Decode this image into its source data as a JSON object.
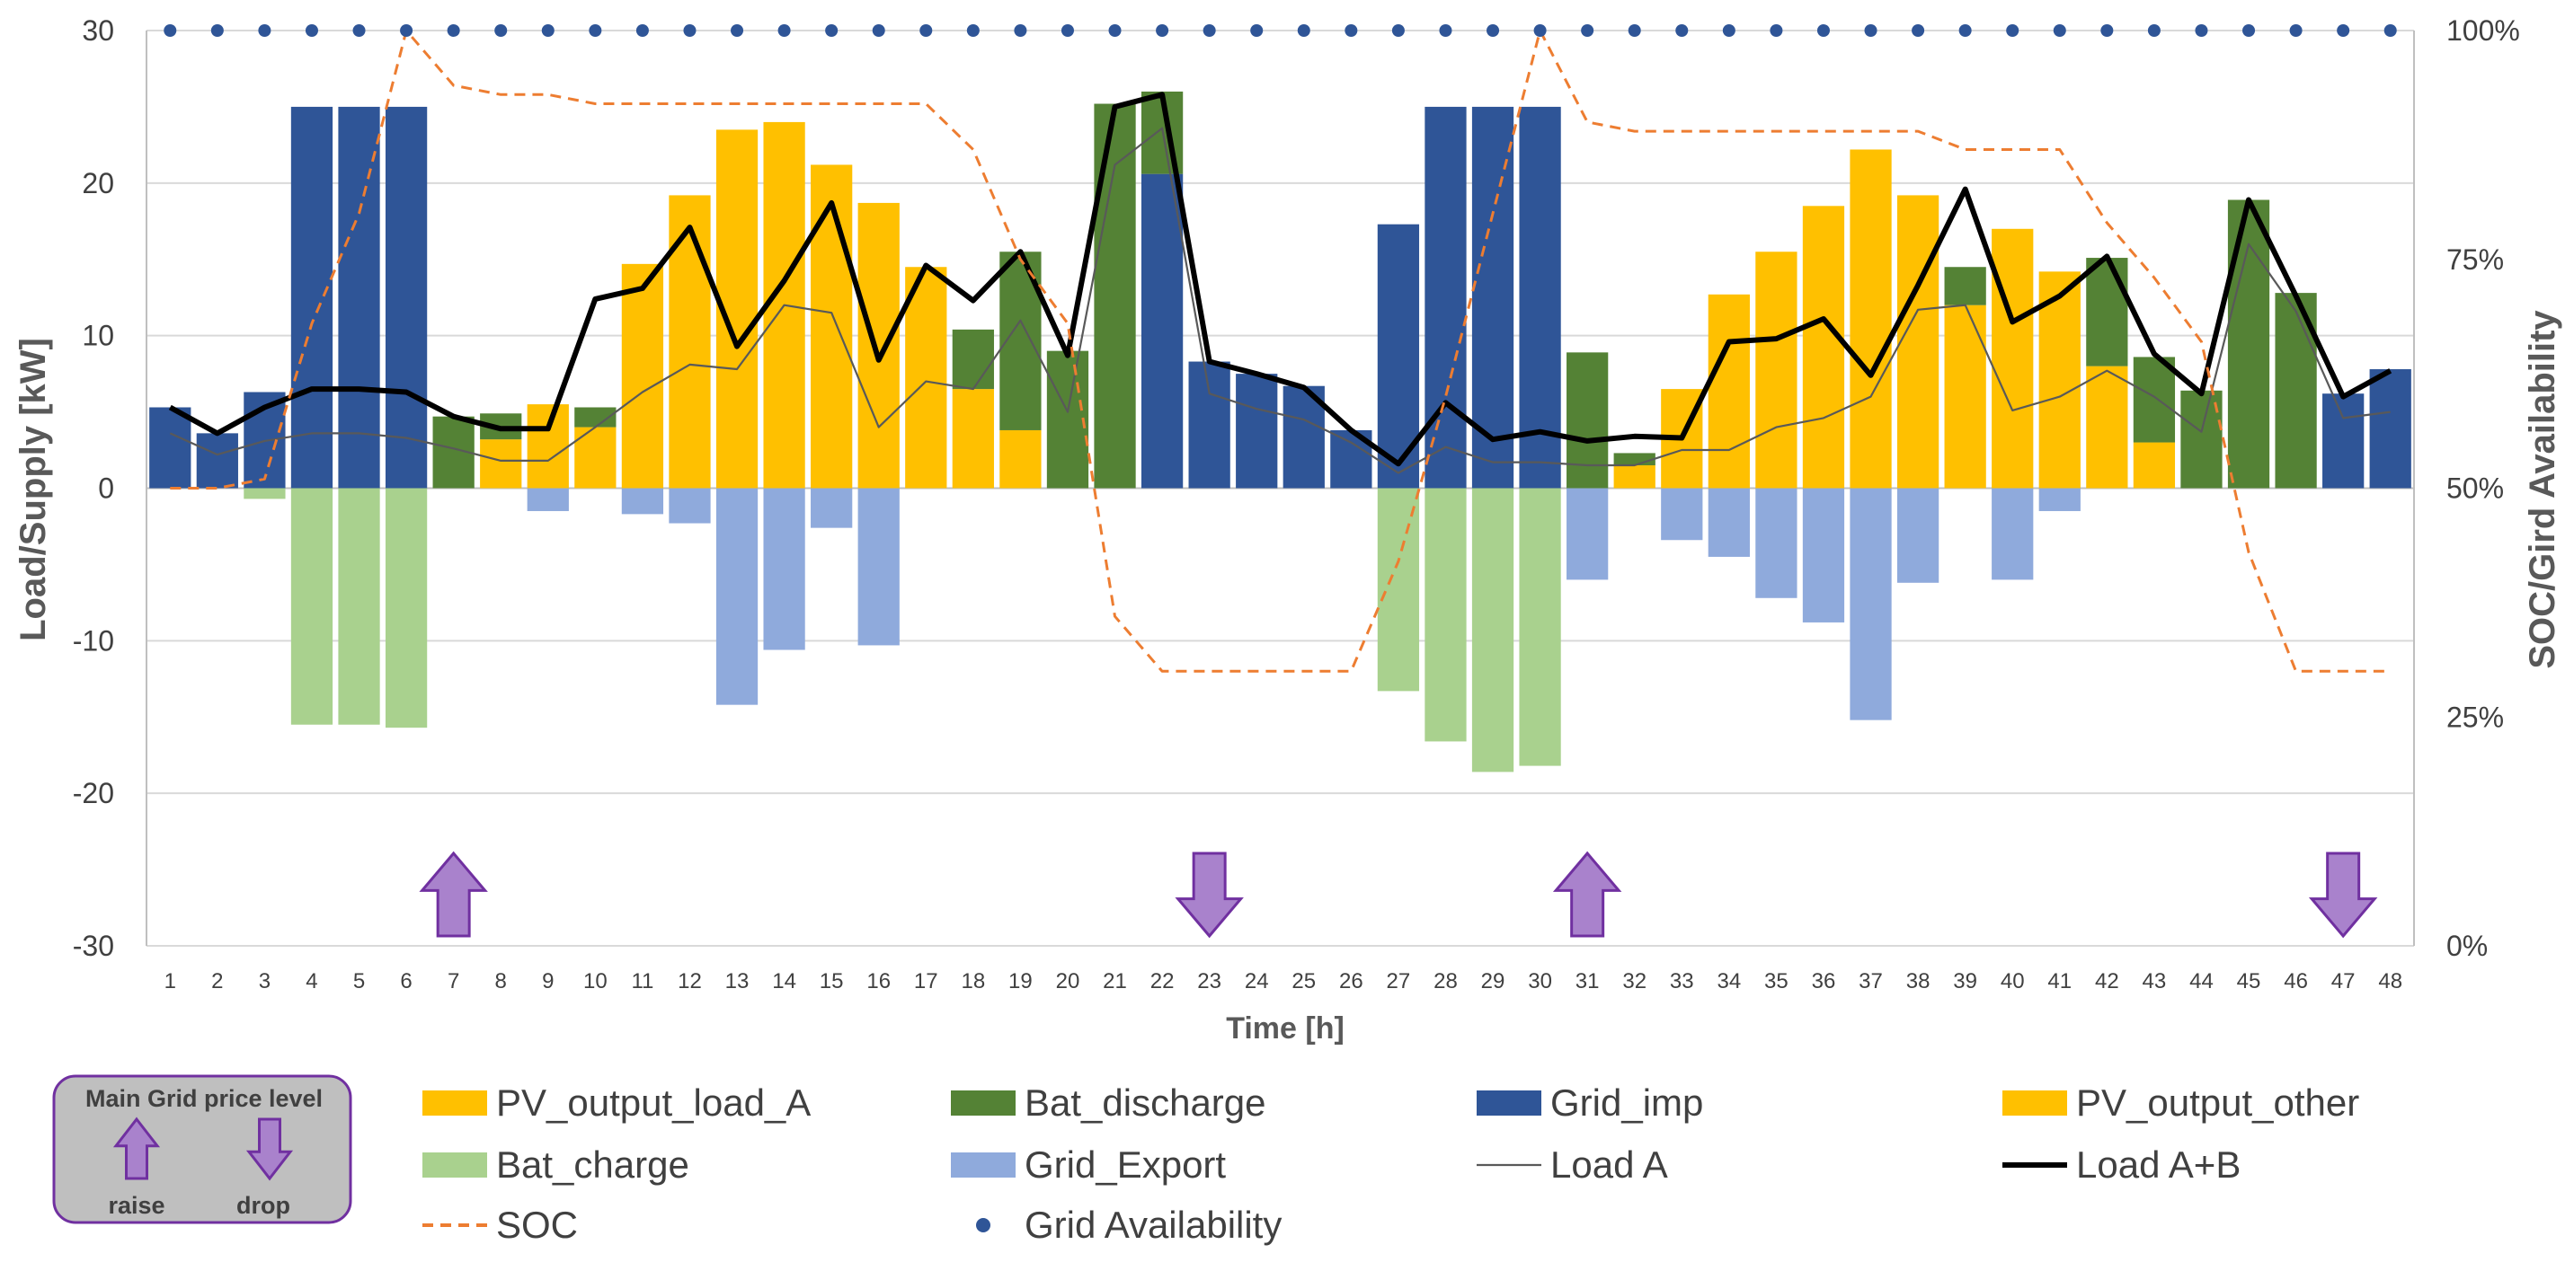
{
  "chart_data": {
    "type": "bar",
    "title": "",
    "xlabel": "Time [h]",
    "ylabel": "Load/Supply [kW]",
    "y2label": "SOC/Gird Availability",
    "ylim": [
      -30,
      30
    ],
    "yticks": [
      -30,
      -20,
      -10,
      0,
      10,
      20,
      30
    ],
    "y2lim": [
      0,
      100
    ],
    "y2ticks": [
      "0%",
      "25%",
      "50%",
      "75%",
      "100%"
    ],
    "categories": [
      1,
      2,
      3,
      4,
      5,
      6,
      7,
      8,
      9,
      10,
      11,
      12,
      13,
      14,
      15,
      16,
      17,
      18,
      19,
      20,
      21,
      22,
      23,
      24,
      25,
      26,
      27,
      28,
      29,
      30,
      31,
      32,
      33,
      34,
      35,
      36,
      37,
      38,
      39,
      40,
      41,
      42,
      43,
      44,
      45,
      46,
      47,
      48
    ],
    "stacked_series": [
      {
        "name": "Grid_imp",
        "color": "#2F5597",
        "values": [
          5.3,
          3.6,
          6.3,
          25,
          25,
          25,
          0,
          0,
          0,
          0,
          0,
          0,
          0,
          0,
          0,
          0,
          0,
          0,
          0,
          0,
          0,
          20.6,
          8.3,
          7.5,
          6.7,
          3.8,
          17.3,
          25,
          25,
          25,
          0,
          0,
          0,
          0,
          0,
          0,
          0,
          0,
          0,
          0,
          0,
          0,
          0,
          0,
          0,
          0,
          6.2,
          7.8
        ]
      },
      {
        "name": "PV_output_load_A",
        "color": "#FFC000",
        "values": [
          0,
          0,
          0,
          0,
          0,
          0,
          0,
          3.2,
          5.5,
          4,
          14.7,
          19.2,
          23.5,
          24,
          21.2,
          18.7,
          14.5,
          6.5,
          3.8,
          0,
          0,
          0,
          0,
          0,
          0,
          0,
          0,
          0,
          0,
          0,
          0,
          1.5,
          6.5,
          12.7,
          15.5,
          18.5,
          22.2,
          19.2,
          12,
          17,
          14.2,
          8,
          3,
          0,
          0,
          0,
          0,
          0
        ]
      },
      {
        "name": "Bat_discharge",
        "color": "#548235",
        "values": [
          0,
          0,
          0,
          0,
          0,
          0,
          4.7,
          1.7,
          0,
          1.3,
          0,
          0,
          0,
          0,
          0,
          0,
          0,
          3.9,
          11.7,
          9,
          25.2,
          5.4,
          0,
          0,
          0,
          0,
          0,
          0,
          0,
          0,
          8.9,
          0.8,
          0,
          0,
          0,
          0,
          0,
          0,
          2.5,
          0,
          0,
          7.1,
          5.6,
          6.4,
          18.9,
          12.8,
          0,
          0
        ]
      },
      {
        "name": "PV_output_other",
        "color": "#FFC000",
        "values": []
      },
      {
        "name": "Bat_charge",
        "color": "#A9D18E",
        "values": [
          0,
          0,
          -0.7,
          -15.5,
          -15.5,
          -15.7,
          0,
          0,
          0,
          0,
          0,
          0,
          0,
          0,
          0,
          0,
          0,
          0,
          0,
          0,
          0,
          0,
          0,
          0,
          0,
          0,
          -13.3,
          -16.6,
          -18.6,
          -18.2,
          0,
          0,
          0,
          0,
          0,
          0,
          0,
          0,
          0,
          0,
          0,
          0,
          0,
          0,
          0,
          0,
          0,
          0
        ]
      },
      {
        "name": "Grid_Export",
        "color": "#8FAADC",
        "values": [
          0,
          0,
          0,
          0,
          0,
          0,
          0,
          0,
          -1.5,
          0,
          -1.7,
          -2.3,
          -14.2,
          -10.6,
          -2.6,
          -10.3,
          0,
          0,
          0,
          0,
          0,
          0,
          0,
          0,
          0,
          0,
          0,
          0,
          0,
          0,
          -6,
          0,
          -3.4,
          -4.5,
          -7.2,
          -8.8,
          -15.2,
          -6.2,
          0,
          -6,
          -1.5,
          0,
          0,
          0,
          0,
          0,
          0,
          0
        ]
      }
    ],
    "lines": [
      {
        "name": "Load A",
        "color": "#595959",
        "width": 2.2,
        "axis": "left",
        "values": [
          3.6,
          2.2,
          3.1,
          3.6,
          3.6,
          3.3,
          2.6,
          1.8,
          1.8,
          4,
          6.3,
          8.1,
          7.8,
          12,
          11.5,
          4,
          7,
          6.5,
          11,
          5,
          21.2,
          23.6,
          6.2,
          5.2,
          4.5,
          3,
          1,
          2.7,
          1.7,
          1.7,
          1.5,
          1.5,
          2.5,
          2.5,
          4,
          4.6,
          6,
          11.7,
          12,
          5.1,
          6,
          7.7,
          6,
          3.7,
          16,
          11.6,
          4.6,
          5
        ]
      },
      {
        "name": "Load A+B",
        "color": "#000000",
        "width": 6,
        "axis": "left",
        "values": [
          5.3,
          3.6,
          5.3,
          6.5,
          6.5,
          6.3,
          4.7,
          3.9,
          3.9,
          12.4,
          13.1,
          17.1,
          9.3,
          13.6,
          18.7,
          8.4,
          14.6,
          12.3,
          15.5,
          8.7,
          25,
          25.8,
          8.3,
          7.5,
          6.6,
          3.8,
          1.6,
          5.6,
          3.2,
          3.7,
          3.1,
          3.4,
          3.3,
          9.6,
          9.8,
          11.1,
          7.4,
          13.3,
          19.6,
          10.9,
          12.6,
          15.2,
          8.8,
          6.2,
          18.9,
          12.6,
          6,
          7.7
        ]
      },
      {
        "name": "SOC",
        "color": "#ED7D31",
        "width": 3,
        "dashed": true,
        "axis": "right",
        "values": [
          50,
          50,
          51,
          68,
          80,
          100,
          94,
          93,
          93,
          92,
          92,
          92,
          92,
          92,
          92,
          92,
          92,
          87,
          75,
          68,
          36,
          30,
          30,
          30,
          30,
          30,
          42,
          60,
          80,
          100,
          90,
          89,
          89,
          89,
          89,
          89,
          89,
          89,
          87,
          87,
          87,
          79,
          73,
          66,
          43,
          30,
          30,
          30
        ]
      }
    ],
    "grid_availability": {
      "name": "Grid Availability",
      "color": "#2F5597",
      "axis": "right",
      "values": [
        100,
        100,
        100,
        100,
        100,
        100,
        100,
        100,
        100,
        100,
        100,
        100,
        100,
        100,
        100,
        100,
        100,
        100,
        100,
        100,
        100,
        100,
        100,
        100,
        100,
        100,
        100,
        100,
        100,
        100,
        100,
        100,
        100,
        100,
        100,
        100,
        100,
        100,
        100,
        100,
        100,
        100,
        100,
        100,
        100,
        100,
        100,
        100
      ]
    },
    "price_arrows": [
      {
        "hour": 7,
        "direction": "raise"
      },
      {
        "hour": 23,
        "direction": "drop"
      },
      {
        "hour": 31,
        "direction": "raise"
      },
      {
        "hour": 47,
        "direction": "drop"
      }
    ],
    "legend": {
      "placement": "bottom",
      "entries": [
        {
          "label": "PV_output_load_A",
          "kind": "rect",
          "color": "#FFC000"
        },
        {
          "label": "Bat_discharge",
          "kind": "rect",
          "color": "#548235"
        },
        {
          "label": "Grid_imp",
          "kind": "rect",
          "color": "#2F5597"
        },
        {
          "label": "PV_output_other",
          "kind": "rect",
          "color": "#FFC000"
        },
        {
          "label": "Bat_charge",
          "kind": "rect",
          "color": "#A9D18E"
        },
        {
          "label": "Grid_Export",
          "kind": "rect",
          "color": "#8FAADC"
        },
        {
          "label": "Load A",
          "kind": "line",
          "color": "#595959"
        },
        {
          "label": "Load A+B",
          "kind": "thickline",
          "color": "#000000"
        },
        {
          "label": "SOC",
          "kind": "dash",
          "color": "#ED7D31"
        },
        {
          "label": "Grid Availability",
          "kind": "dot",
          "color": "#2F5597"
        }
      ]
    },
    "price_box": {
      "title": "Main Grid price level",
      "raise_label": "raise",
      "drop_label": "drop",
      "arrow_color": "#A982CC",
      "border_color": "#7030A0"
    }
  }
}
